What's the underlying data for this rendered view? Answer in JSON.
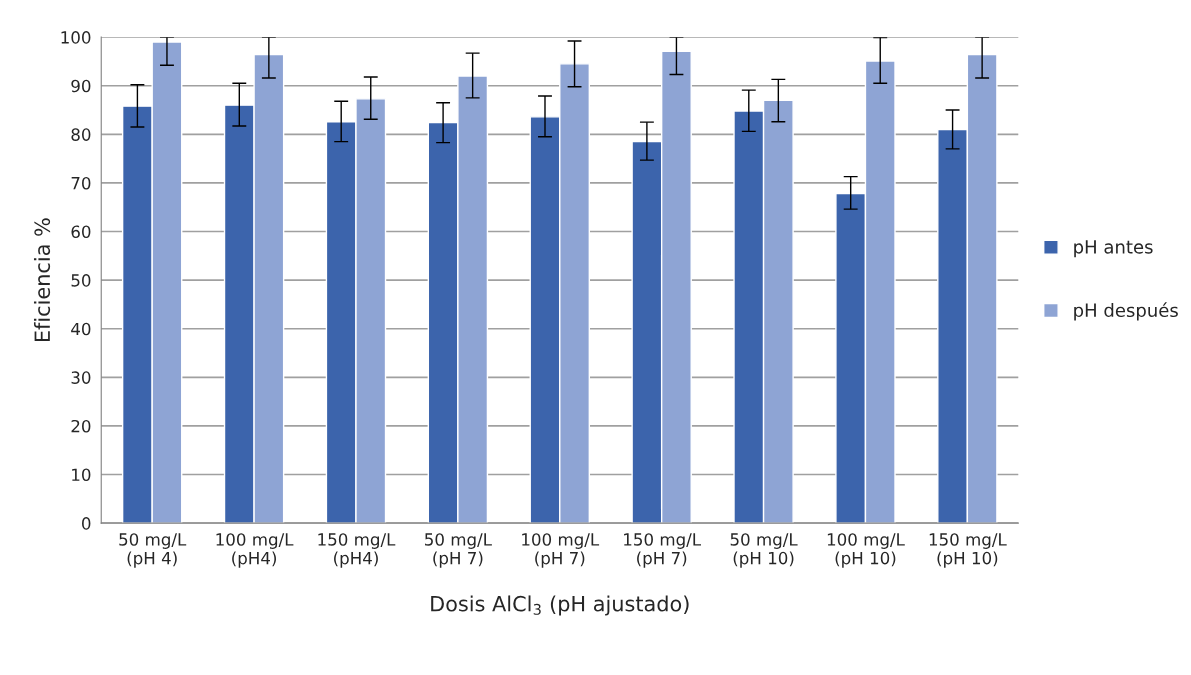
{
  "chart_data": {
    "type": "bar",
    "ylabel": "Eficiencia %",
    "xlabel": "Dosis AlCl$_{3}$ (pH ajustado)",
    "categories": [
      "50 mg/L\n(pH 4)",
      "100 mg/L\n(pH4)",
      "150 mg/L\n(pH4)",
      "50 mg/L\n(pH 7)",
      "100 mg/L\n(pH 7)",
      "150 mg/L\n(pH 7)",
      "50 mg/L\n(pH 10)",
      "100 mg/L\n(pH 10)",
      "150 mg/L\n(pH 10)"
    ],
    "series": [
      {
        "name": "pH antes",
        "color": "#3c64ac",
        "values": [
          85.8,
          86.0,
          82.6,
          82.4,
          83.6,
          78.5,
          84.8,
          67.8,
          81.0
        ],
        "errors": [
          [
            81.5,
            90.2
          ],
          [
            81.7,
            90.5
          ],
          [
            78.5,
            86.8
          ],
          [
            78.3,
            86.5
          ],
          [
            79.5,
            87.9
          ],
          [
            74.7,
            82.5
          ],
          [
            80.6,
            89.1
          ],
          [
            64.6,
            71.3
          ],
          [
            77.0,
            85.0
          ]
        ]
      },
      {
        "name": "pH después",
        "color": "#8ea4d4",
        "values": [
          99.0,
          96.4,
          87.3,
          92.0,
          94.5,
          97.1,
          87.0,
          95.1,
          96.4
        ],
        "errors": [
          [
            94.2,
            100
          ],
          [
            91.6,
            100
          ],
          [
            83.1,
            91.8
          ],
          [
            87.5,
            96.7
          ],
          [
            89.8,
            99.2
          ],
          [
            92.3,
            100
          ],
          [
            82.6,
            91.3
          ],
          [
            90.5,
            99.9
          ],
          [
            91.6,
            100
          ]
        ]
      }
    ],
    "ylim": [
      0,
      100
    ],
    "yticks": [
      0,
      10,
      20,
      30,
      40,
      50,
      60,
      70,
      80,
      90,
      100
    ],
    "grid": "y",
    "legend": "right"
  }
}
